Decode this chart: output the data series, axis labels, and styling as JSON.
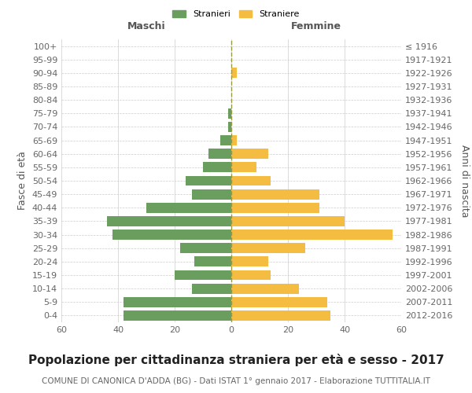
{
  "age_groups": [
    "0-4",
    "5-9",
    "10-14",
    "15-19",
    "20-24",
    "25-29",
    "30-34",
    "35-39",
    "40-44",
    "45-49",
    "50-54",
    "55-59",
    "60-64",
    "65-69",
    "70-74",
    "75-79",
    "80-84",
    "85-89",
    "90-94",
    "95-99",
    "100+"
  ],
  "birth_years": [
    "2012-2016",
    "2007-2011",
    "2002-2006",
    "1997-2001",
    "1992-1996",
    "1987-1991",
    "1982-1986",
    "1977-1981",
    "1972-1976",
    "1967-1971",
    "1962-1966",
    "1957-1961",
    "1952-1956",
    "1947-1951",
    "1942-1946",
    "1937-1941",
    "1932-1936",
    "1927-1931",
    "1922-1926",
    "1917-1921",
    "≤ 1916"
  ],
  "maschi": [
    38,
    38,
    14,
    20,
    13,
    18,
    42,
    44,
    30,
    14,
    16,
    10,
    8,
    4,
    1,
    1,
    0,
    0,
    0,
    0,
    0
  ],
  "femmine": [
    35,
    34,
    24,
    14,
    13,
    26,
    57,
    40,
    31,
    31,
    14,
    9,
    13,
    2,
    0,
    0,
    0,
    0,
    2,
    0,
    0
  ],
  "male_color": "#6a9e5e",
  "female_color": "#f5bc42",
  "background_color": "#ffffff",
  "grid_color": "#cccccc",
  "title": "Popolazione per cittadinanza straniera per età e sesso - 2017",
  "subtitle": "COMUNE DI CANONICA D'ADDA (BG) - Dati ISTAT 1° gennaio 2017 - Elaborazione TUTTITALIA.IT",
  "ylabel_left": "Fasce di età",
  "ylabel_right": "Anni di nascita",
  "xlabel_maschi": "Maschi",
  "xlabel_femmine": "Femmine",
  "legend_stranieri": "Stranieri",
  "legend_straniere": "Straniere",
  "xlim": 60,
  "title_fontsize": 11,
  "subtitle_fontsize": 7.5,
  "axis_label_fontsize": 9,
  "tick_fontsize": 8
}
